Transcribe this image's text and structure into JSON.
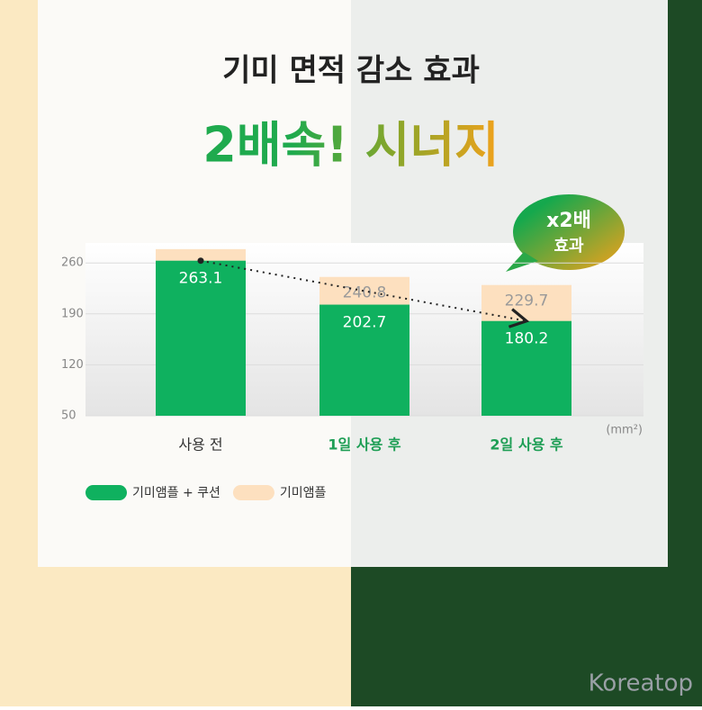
{
  "chart_data": {
    "type": "bar",
    "title": "기미 면적 감소 효과",
    "subtitle": "2배속! 시너지",
    "badge": [
      "x2배",
      "효과"
    ],
    "unit": "(mm²)",
    "watermark": "Koreatop",
    "categories": [
      "사용 전",
      "1일 사용 후",
      "2일 사용 후"
    ],
    "category_colors": [
      "#333333",
      "#1e9e55",
      "#1e9e55"
    ],
    "series": [
      {
        "name": "기미앰플 + 쿠션",
        "color": "#0fb15f",
        "values": [
          263.1,
          202.7,
          180.2
        ]
      },
      {
        "name": "기미앰플",
        "color": "#fde0bf",
        "values": [
          279,
          240.8,
          229.7
        ],
        "value_labels": [
          null,
          "240.8",
          "229.7"
        ]
      }
    ],
    "ylim": [
      50,
      285
    ],
    "yticks": [
      50,
      120,
      190,
      260
    ]
  }
}
